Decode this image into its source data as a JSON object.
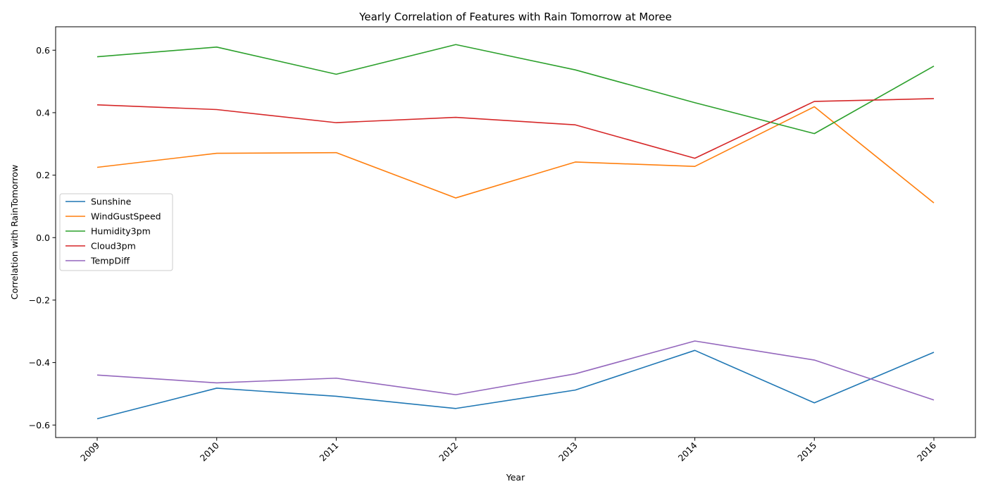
{
  "chart_data": {
    "type": "line",
    "title": "Yearly Correlation of Features with Rain Tomorrow at Moree",
    "xlabel": "Year",
    "ylabel": "Correlation with RainTomorrow",
    "categories": [
      "2009",
      "2010",
      "2011",
      "2012",
      "2013",
      "2014",
      "2015",
      "2016"
    ],
    "x": [
      2009,
      2010,
      2011,
      2012,
      2013,
      2014,
      2015,
      2016
    ],
    "ylim": [
      -0.64,
      0.675
    ],
    "yticks": [
      -0.6,
      -0.4,
      -0.2,
      0.0,
      0.2,
      0.4,
      0.6
    ],
    "ytick_labels": [
      "−0.6",
      "−0.4",
      "−0.2",
      "0.0",
      "0.2",
      "0.4",
      "0.6"
    ],
    "grid": false,
    "legend_position": "center-left",
    "series": [
      {
        "name": "Sunshine",
        "color": "#1f77b4",
        "values": [
          -0.58,
          -0.482,
          -0.508,
          -0.547,
          -0.488,
          -0.361,
          -0.529,
          -0.367
        ]
      },
      {
        "name": "WindGustSpeed",
        "color": "#ff7f0e",
        "values": [
          0.225,
          0.27,
          0.272,
          0.127,
          0.242,
          0.228,
          0.419,
          0.111
        ]
      },
      {
        "name": "Humidity3pm",
        "color": "#2ca02c",
        "values": [
          0.579,
          0.61,
          0.523,
          0.618,
          0.537,
          0.432,
          0.333,
          0.549
        ]
      },
      {
        "name": "Cloud3pm",
        "color": "#d62728",
        "values": [
          0.425,
          0.41,
          0.368,
          0.385,
          0.361,
          0.254,
          0.436,
          0.445
        ]
      },
      {
        "name": "TempDiff",
        "color": "#9467bd",
        "values": [
          -0.44,
          -0.465,
          -0.45,
          -0.503,
          -0.436,
          -0.331,
          -0.392,
          -0.52
        ]
      }
    ]
  }
}
